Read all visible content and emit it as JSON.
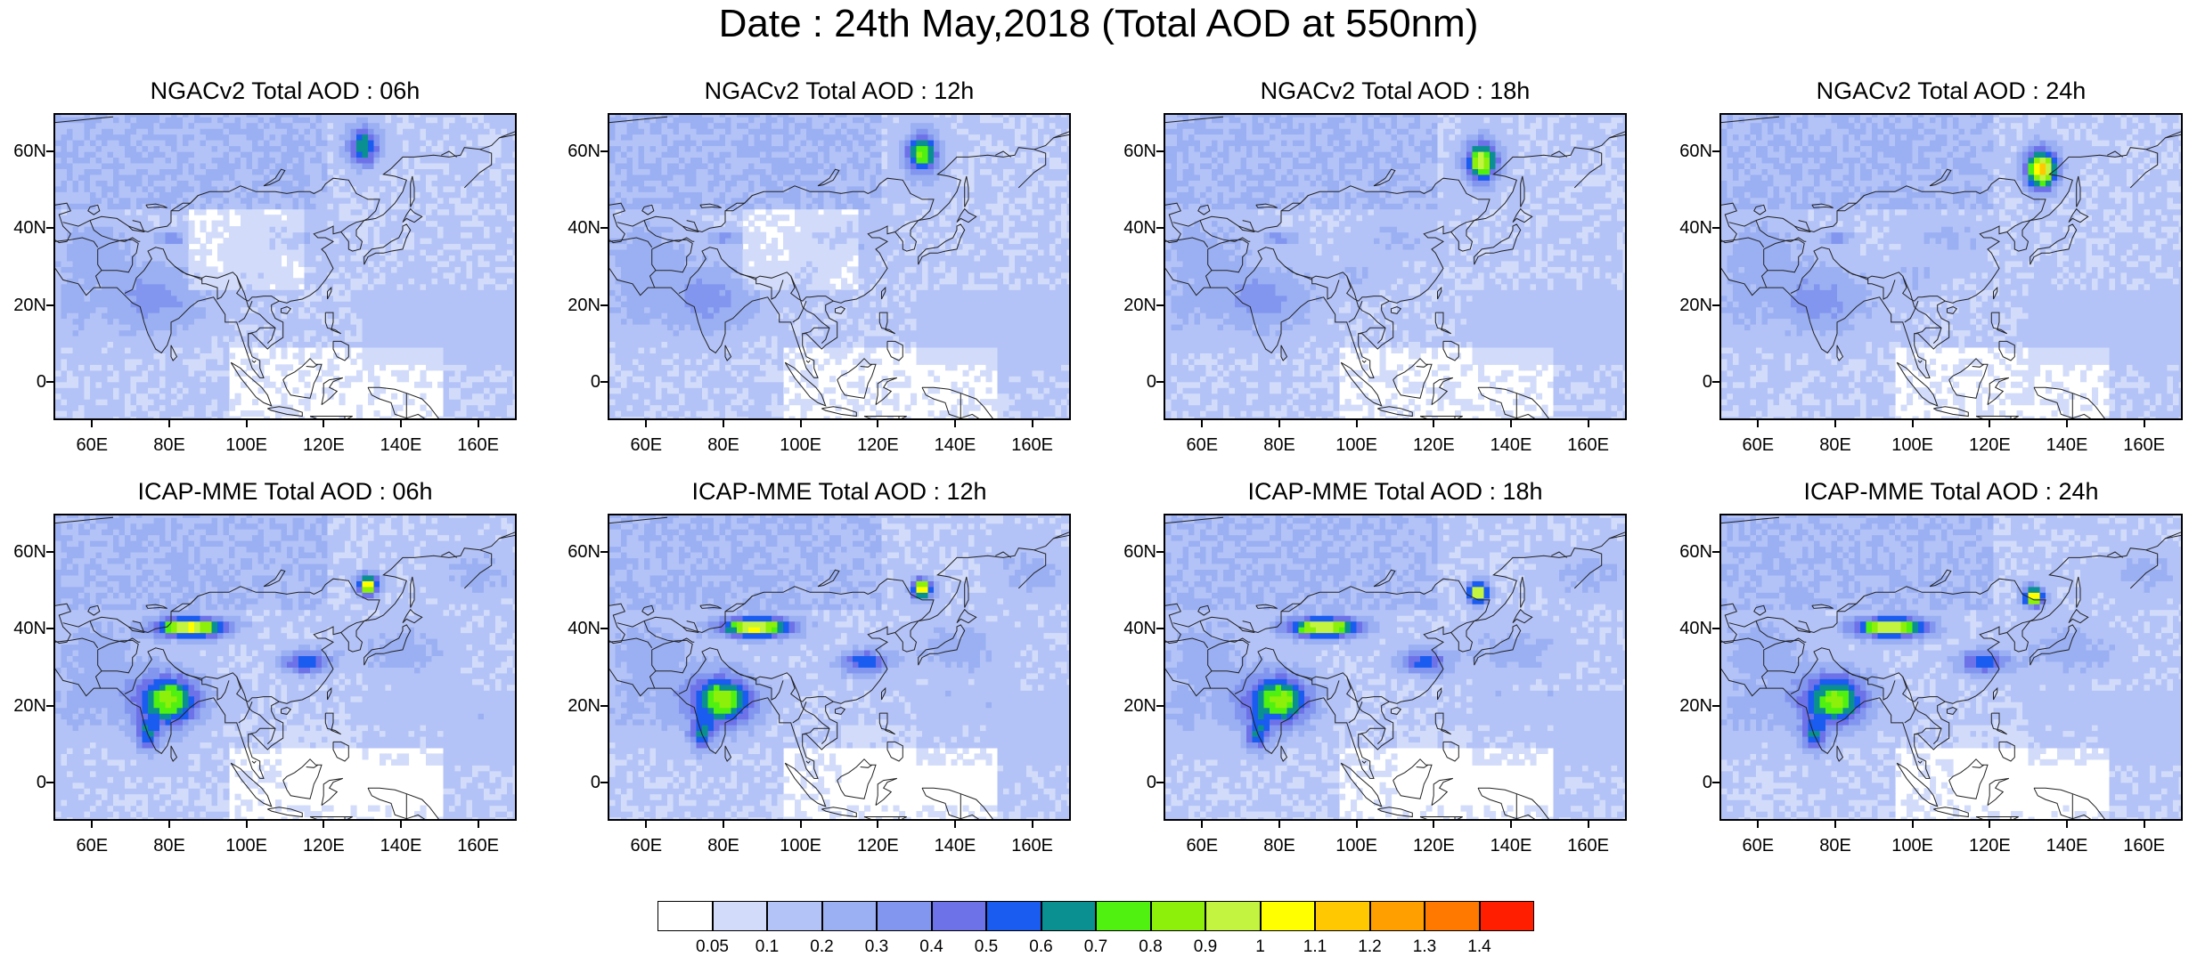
{
  "title": "Date : 24th May,2018 (Total AOD at 550nm)",
  "panels": [
    {
      "title": "NGACv2 Total AOD : 06h",
      "model": "NGACv2",
      "hour": "06h"
    },
    {
      "title": "NGACv2 Total AOD : 12h",
      "model": "NGACv2",
      "hour": "12h"
    },
    {
      "title": "NGACv2 Total AOD : 18h",
      "model": "NGACv2",
      "hour": "18h"
    },
    {
      "title": "NGACv2 Total AOD : 24h",
      "model": "NGACv2",
      "hour": "24h"
    },
    {
      "title": "ICAP-MME Total AOD : 06h",
      "model": "ICAP-MME",
      "hour": "06h"
    },
    {
      "title": "ICAP-MME Total AOD : 12h",
      "model": "ICAP-MME",
      "hour": "12h"
    },
    {
      "title": "ICAP-MME Total AOD : 18h",
      "model": "ICAP-MME",
      "hour": "18h"
    },
    {
      "title": "ICAP-MME Total AOD : 24h",
      "model": "ICAP-MME",
      "hour": "24h"
    }
  ],
  "lat_ticks": [
    "60N",
    "40N",
    "20N",
    "0"
  ],
  "lon_ticks": [
    "60E",
    "80E",
    "100E",
    "120E",
    "140E",
    "160E"
  ],
  "colorbar": {
    "labels": [
      "0.05",
      "0.1",
      "0.2",
      "0.3",
      "0.4",
      "0.5",
      "0.6",
      "0.7",
      "0.8",
      "0.9",
      "1",
      "1.1",
      "1.2",
      "1.3",
      "1.4"
    ],
    "colors": [
      "#ffffff",
      "#d2dcfa",
      "#b4c3f7",
      "#9bb0f3",
      "#8296ef",
      "#6e72e8",
      "#1a5cf0",
      "#0a9090",
      "#50f010",
      "#8cf00a",
      "#c3f540",
      "#ffff00",
      "#ffc800",
      "#ffa000",
      "#ff7800",
      "#ff1e00"
    ]
  }
}
